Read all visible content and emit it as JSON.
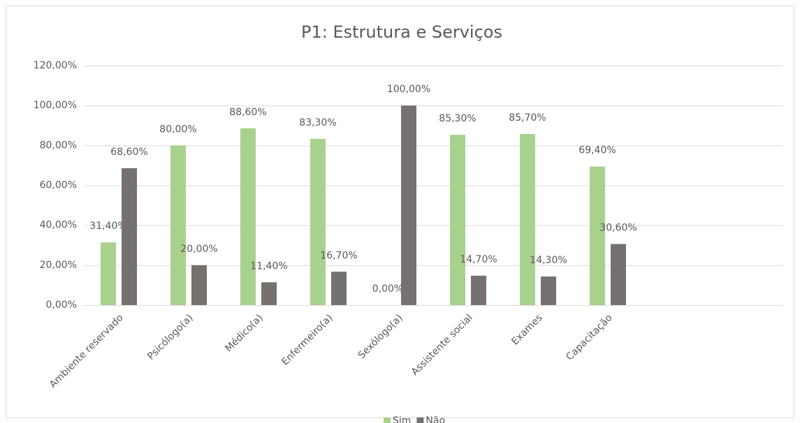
{
  "chart_data": {
    "type": "bar",
    "title": "P1: Estrutura e Serviços",
    "categories": [
      "Ambiente reservado",
      "Psicólogo(a)",
      "Médico(a)",
      "Enfermeiro(a)",
      "Sexólogo(a)",
      "Assistente social",
      "Exames",
      "Capacitação",
      null,
      null
    ],
    "series": [
      {
        "name": "Sim",
        "color": "#a9d18e",
        "values": [
          31.4,
          80,
          88.6,
          83.3,
          0,
          85.3,
          85.7,
          69.4,
          null,
          null
        ],
        "value_labels": [
          "31,40%",
          "80,00%",
          "88,60%",
          "83,30%",
          "0,00%",
          "85,30%",
          "85,70%",
          "69,40%",
          null,
          null
        ]
      },
      {
        "name": "Não",
        "color": "#767171",
        "values": [
          68.6,
          20,
          11.4,
          16.7,
          100,
          14.7,
          14.3,
          30.6,
          null,
          null
        ],
        "value_labels": [
          "68,60%",
          "20,00%",
          "11,40%",
          "16,70%",
          "100,00%",
          "14,70%",
          "14,30%",
          "30,60%",
          null,
          null
        ]
      }
    ],
    "ylim": [
      0,
      120
    ],
    "yticks": [
      {
        "value": 0,
        "label": "0,00%"
      },
      {
        "value": 20,
        "label": "20,00%"
      },
      {
        "value": 40,
        "label": "40,00%"
      },
      {
        "value": 60,
        "label": "60,00%"
      },
      {
        "value": 80,
        "label": "80,00%"
      },
      {
        "value": 100,
        "label": "100,00%"
      },
      {
        "value": 120,
        "label": "120,00%"
      }
    ],
    "grid": true,
    "legend": "bottom"
  }
}
